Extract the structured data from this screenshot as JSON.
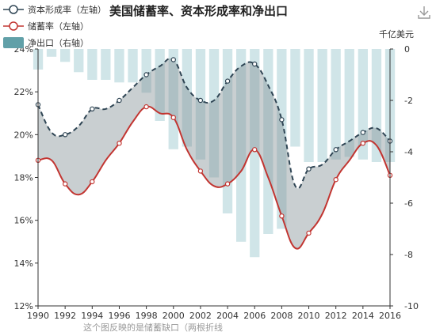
{
  "chart_data": {
    "type": "bar",
    "title": "美国储蓄率、资本形成率和净出口",
    "years": [
      1990,
      1991,
      1992,
      1993,
      1994,
      1995,
      1996,
      1997,
      1998,
      1999,
      2000,
      2001,
      2002,
      2003,
      2004,
      2005,
      2006,
      2007,
      2008,
      2009,
      2010,
      2011,
      2012,
      2013,
      2014,
      2015,
      2016
    ],
    "xticks": [
      "1990",
      "1992",
      "1994",
      "1996",
      "1998",
      "2000",
      "2002",
      "2004",
      "2006",
      "2008",
      "2010",
      "2012",
      "2014",
      "2016"
    ],
    "left_axis": {
      "label": "",
      "min": 12,
      "max": 24,
      "ticks": [
        "12%",
        "14%",
        "16%",
        "18%",
        "20%",
        "22%",
        "24%"
      ]
    },
    "right_axis": {
      "label": "千亿美元",
      "min": -10,
      "max": 0,
      "ticks": [
        "-10",
        "-8",
        "-6",
        "-4",
        "-2",
        "0"
      ]
    },
    "series": [
      {
        "name": "资本形成率（左轴）",
        "axis": "left",
        "style": "dashed-line",
        "color": "#2f4554",
        "values": [
          21.4,
          20.1,
          20.0,
          20.4,
          21.2,
          21.2,
          21.6,
          22.2,
          22.8,
          23.2,
          23.5,
          22.2,
          21.6,
          21.6,
          22.5,
          23.2,
          23.3,
          22.3,
          20.7,
          17.6,
          18.4,
          18.6,
          19.3,
          19.7,
          20.1,
          20.3,
          19.7
        ]
      },
      {
        "name": "储蓄率（左轴）",
        "axis": "left",
        "style": "line",
        "color": "#c23531",
        "values": [
          18.8,
          18.8,
          17.7,
          17.2,
          17.8,
          18.8,
          19.6,
          20.6,
          21.3,
          21.0,
          20.8,
          19.3,
          18.3,
          17.6,
          17.7,
          18.3,
          19.3,
          18.0,
          16.2,
          14.7,
          15.4,
          16.3,
          17.9,
          18.8,
          19.6,
          19.5,
          18.1
        ]
      },
      {
        "name": "净出口（右轴）",
        "axis": "right",
        "style": "bar",
        "color": "#a9cfd6",
        "values": [
          -0.8,
          -0.3,
          -0.5,
          -0.9,
          -1.2,
          -1.2,
          -1.3,
          -1.3,
          -1.7,
          -2.8,
          -3.9,
          -3.8,
          -4.3,
          -5.0,
          -6.4,
          -7.5,
          -8.1,
          -7.2,
          -7.0,
          -3.8,
          -4.4,
          -4.4,
          -4.3,
          -4.2,
          -4.3,
          -4.4,
          -4.4
        ]
      }
    ],
    "legend_position": "top-left",
    "footnote": "这个图反映的是储蓄缺口（两根折线"
  },
  "toolbar": {
    "download_icon": "download-icon"
  }
}
